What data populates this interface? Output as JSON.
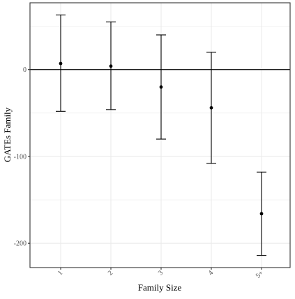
{
  "chart_data": {
    "type": "errorbar",
    "title": "",
    "xlabel": "Family Size",
    "ylabel": "GATEs Family",
    "categories": [
      "1",
      "2",
      "3",
      "4",
      "5+"
    ],
    "series": [
      {
        "estimate": [
          7,
          4,
          -20,
          -44,
          -166
        ],
        "lower": [
          -48,
          -46,
          -80,
          -108,
          -214
        ],
        "upper": [
          63,
          55,
          40,
          20,
          -118
        ]
      }
    ],
    "reference_line": 0,
    "ylim": [
      -228,
      77
    ],
    "yticks": [
      0,
      -100,
      -200
    ],
    "ytick_labels": [
      "0",
      "-100",
      "-200"
    ],
    "grid": true,
    "legend": "none",
    "colors": {
      "points": "#000000",
      "grid": "#ebebeb",
      "panel_border": "#333333"
    }
  }
}
